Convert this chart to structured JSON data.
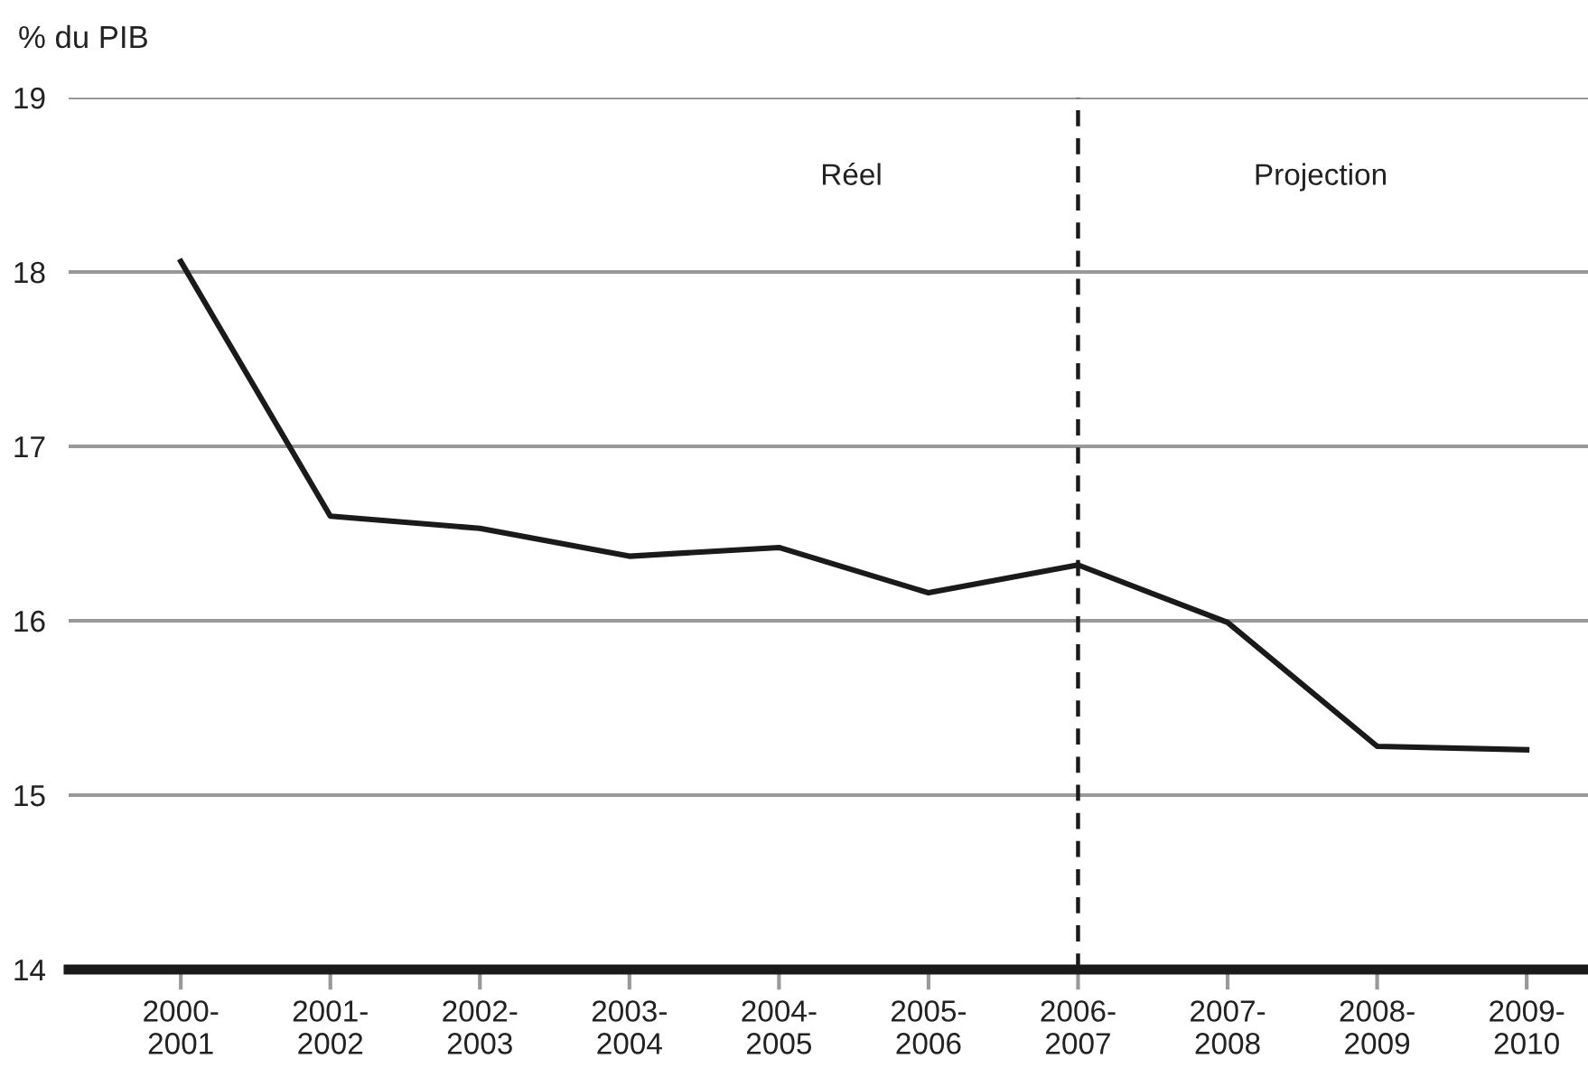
{
  "chart_data": {
    "type": "line",
    "ylabel": "% du PIB",
    "categories": [
      "2000-\n2001",
      "2001-\n2002",
      "2002-\n2003",
      "2003-\n2004",
      "2004-\n2005",
      "2005-\n2006",
      "2006-\n2007",
      "2007-\n2008",
      "2008-\n2009",
      "2009-\n2010"
    ],
    "series": [
      {
        "color": "#1a1a1a",
        "values": [
          18.06,
          16.6,
          16.53,
          16.37,
          16.42,
          16.16,
          16.32,
          15.99,
          15.28,
          15.26
        ]
      }
    ],
    "ylim": [
      14,
      19
    ],
    "yticks": [
      14,
      15,
      16,
      17,
      18,
      19
    ],
    "grid": "y",
    "marker": "none",
    "line_style": "solid",
    "ref_lines": [
      {
        "axis": "x",
        "value": "2006-\n2007",
        "color": "#1a1a1a",
        "line_style": "dashed"
      }
    ],
    "annotations": [
      "Réel",
      "Projection"
    ]
  }
}
